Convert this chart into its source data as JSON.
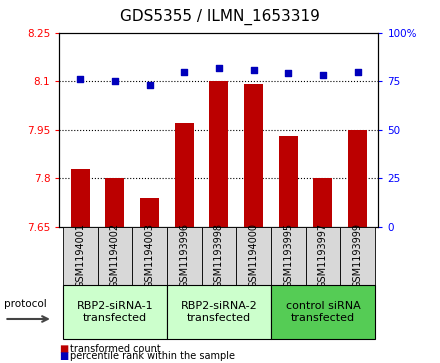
{
  "title": "GDS5355 / ILMN_1653319",
  "samples": [
    "GSM1194001",
    "GSM1194002",
    "GSM1194003",
    "GSM1193996",
    "GSM1193998",
    "GSM1194000",
    "GSM1193995",
    "GSM1193997",
    "GSM1193999"
  ],
  "transformed_counts": [
    7.83,
    7.8,
    7.74,
    7.97,
    8.1,
    8.09,
    7.93,
    7.8,
    7.95
  ],
  "percentile_ranks": [
    76,
    75,
    73,
    80,
    82,
    81,
    79,
    78,
    80
  ],
  "ylim_left": [
    7.65,
    8.25
  ],
  "ylim_right": [
    0,
    100
  ],
  "yticks_left": [
    7.65,
    7.8,
    7.95,
    8.1,
    8.25
  ],
  "yticks_right": [
    0,
    25,
    50,
    75,
    100
  ],
  "ytick_labels_left": [
    "7.65",
    "7.8",
    "7.95",
    "8.1",
    "8.25"
  ],
  "ytick_labels_right": [
    "0",
    "25",
    "50",
    "75",
    "100%"
  ],
  "hlines": [
    7.8,
    7.95,
    8.1
  ],
  "bar_color": "#bb0000",
  "scatter_color": "#0000bb",
  "bar_width": 0.55,
  "groups": [
    {
      "label": "RBP2-siRNA-1\ntransfected",
      "indices": [
        0,
        1,
        2
      ],
      "color": "#ccffcc"
    },
    {
      "label": "RBP2-siRNA-2\ntransfected",
      "indices": [
        3,
        4,
        5
      ],
      "color": "#ccffcc"
    },
    {
      "label": "control siRNA\ntransfected",
      "indices": [
        6,
        7,
        8
      ],
      "color": "#55cc55"
    }
  ],
  "protocol_label": "protocol",
  "legend_bar_label": "transformed count",
  "legend_scatter_label": "percentile rank within the sample",
  "title_fontsize": 11,
  "tick_fontsize": 7.5,
  "sample_fontsize": 7,
  "group_fontsize": 8
}
